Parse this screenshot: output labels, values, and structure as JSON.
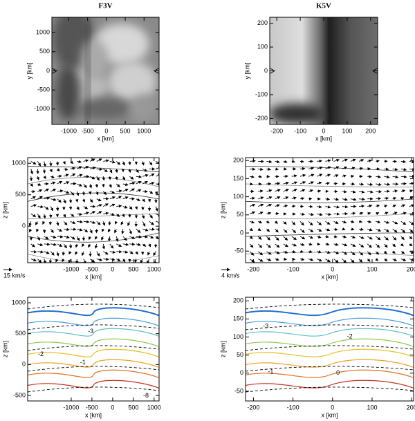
{
  "chart_data": [
    {
      "type": "heatmap",
      "title": "F3V",
      "xlabel": "x [km]",
      "ylabel": "y [km]",
      "xlim": [
        -1450,
        1400
      ],
      "ylim": [
        -1400,
        1400
      ],
      "xticks": [
        -1000,
        -500,
        0,
        500,
        1000
      ],
      "yticks": [
        -1000,
        -500,
        0,
        500,
        1000
      ]
    },
    {
      "type": "heatmap",
      "title": "K5V",
      "xlabel": "x [km]",
      "ylabel": "y [km]",
      "xlim": [
        -230,
        230
      ],
      "ylim": [
        -225,
        225
      ],
      "xticks": [
        -200,
        -100,
        0,
        100,
        200
      ],
      "yticks": [
        -200,
        -100,
        0,
        100,
        200
      ]
    },
    {
      "type": "vector",
      "xlabel": "x [km]",
      "ylabel": "z [km]",
      "scale_label": "15 km/s",
      "xlim": [
        -2050,
        1120
      ],
      "ylim": [
        -580,
        1090
      ],
      "xticks": [
        -1000,
        -500,
        0,
        500,
        1000
      ],
      "yticks": [
        0,
        500,
        1000
      ]
    },
    {
      "type": "vector",
      "xlabel": "x [km]",
      "ylabel": "z [km]",
      "scale_label": "4 km/s",
      "xlim": [
        -220,
        205
      ],
      "ylim": [
        -82,
        208
      ],
      "xticks": [
        -200,
        -100,
        0,
        100,
        200
      ],
      "yticks": [
        -50,
        0,
        50,
        100,
        150,
        200
      ]
    },
    {
      "type": "contour",
      "xlabel": "x [km]",
      "ylabel": "z [km]",
      "xlim": [
        -2050,
        1120
      ],
      "ylim": [
        -590,
        1090
      ],
      "xticks": [
        -1000,
        -500,
        0,
        500,
        1000
      ],
      "yticks": [
        -500,
        0,
        500,
        1000
      ],
      "colors": [
        "#1f6fd1",
        "#4aa0d8",
        "#5fc0c0",
        "#90c850",
        "#e8c020",
        "#f0a020",
        "#e07020",
        "#c03020"
      ],
      "annotations": [
        "-3",
        "-2",
        "-1",
        "-8"
      ]
    },
    {
      "type": "contour",
      "xlabel": "x [km]",
      "ylabel": "z [km]",
      "xlim": [
        -220,
        205
      ],
      "ylim": [
        -77,
        210
      ],
      "xticks": [
        -200,
        -100,
        0,
        100,
        200
      ],
      "yticks": [
        -50,
        0,
        50,
        100,
        150,
        200
      ],
      "colors": [
        "#1f6fd1",
        "#4aa0d8",
        "#5fc0c0",
        "#90c850",
        "#e8c020",
        "#f0a020",
        "#e07020",
        "#c03020"
      ],
      "annotations": [
        "-3",
        "-2",
        "-1",
        "0"
      ]
    }
  ]
}
